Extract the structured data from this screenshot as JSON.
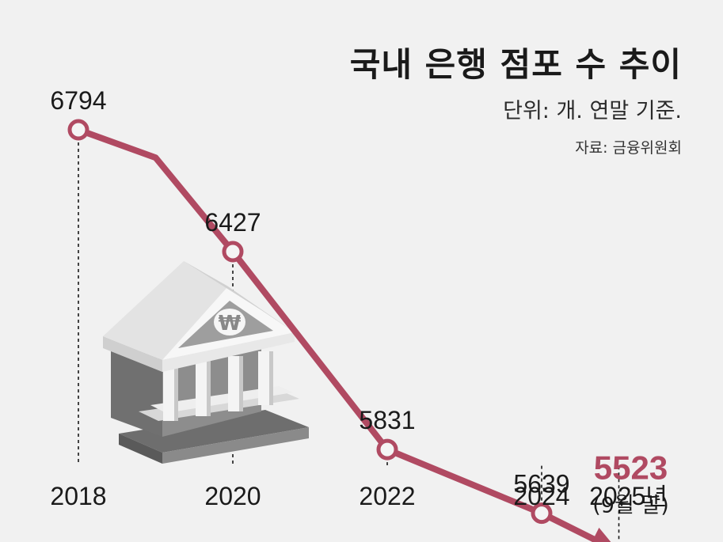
{
  "header": {
    "title": "국내 은행 점포 수 추이",
    "unit": "단위: 개. 연말 기준.",
    "source": "자료: 금융위원회"
  },
  "colors": {
    "accent": "#b04a62",
    "background": "#f1f1f1",
    "text": "#1a1a1a"
  },
  "icons": {
    "building": "bank-building-icon",
    "currency": "won-sign-icon"
  },
  "chart_data": {
    "type": "line",
    "title": "국내 은행 점포 수 추이",
    "xlabel": "",
    "ylabel": "",
    "x_ticks": [
      {
        "label": "2018",
        "value": 2018
      },
      {
        "label": "2020",
        "value": 2020
      },
      {
        "label": "2022",
        "value": 2022
      },
      {
        "label": "2024",
        "value": 2024
      },
      {
        "label": "2025",
        "suffix": "년",
        "value": 2025
      }
    ],
    "points": [
      {
        "x": 2018,
        "y": 6794,
        "label": "6794"
      },
      {
        "x": 2019,
        "y": 6710
      },
      {
        "x": 2020,
        "y": 6427,
        "label": "6427"
      },
      {
        "x": 2022,
        "y": 5831,
        "label": "5831"
      },
      {
        "x": 2024,
        "y": 5639,
        "label": "5639"
      },
      {
        "x": 2025,
        "y": 5523,
        "label": "5523",
        "note": "(9월 말)",
        "highlight": true
      }
    ],
    "xlim": [
      2018,
      2025
    ],
    "ylim": [
      5400,
      6800
    ],
    "grid": false,
    "legend": "none"
  }
}
